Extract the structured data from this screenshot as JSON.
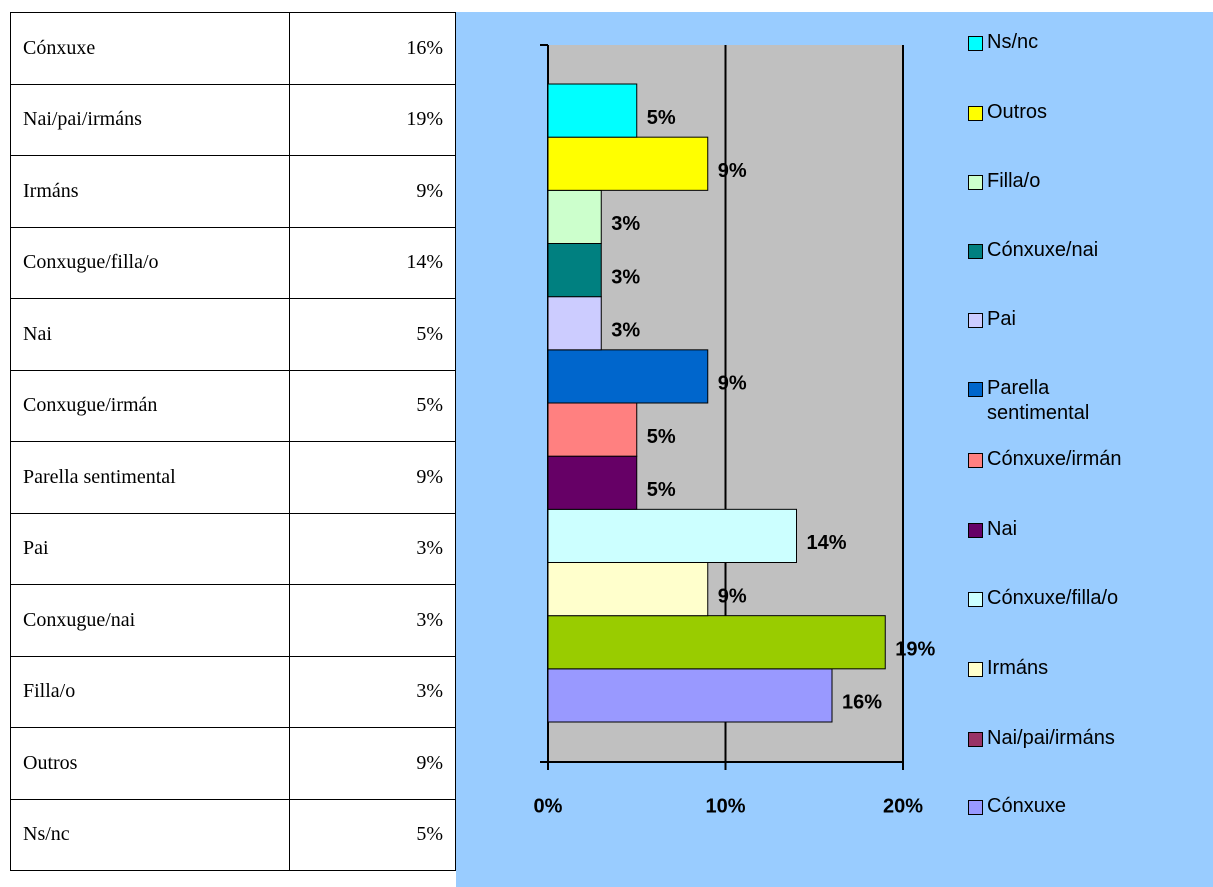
{
  "table": {
    "rows": [
      [
        "Cónxuxe",
        "16%"
      ],
      [
        "Nai/pai/irmáns",
        "19%"
      ],
      [
        "Irmáns",
        "9%"
      ],
      [
        "Conxugue/filla/o",
        "14%"
      ],
      [
        "Nai",
        "5%"
      ],
      [
        "Conxugue/irmán",
        "5%"
      ],
      [
        "Parella sentimental",
        "9%"
      ],
      [
        "Pai",
        "3%"
      ],
      [
        "Conxugue/nai",
        "3%"
      ],
      [
        "Filla/o",
        "3%"
      ],
      [
        "Outros",
        "9%"
      ],
      [
        "Ns/nc",
        "5%"
      ]
    ]
  },
  "chart_data": {
    "type": "barh",
    "categories": [
      "Cónxuxe",
      "Nai/pai/irmáns",
      "Irmáns",
      "Cónxuxe/filla/o",
      "Nai",
      "Cónxuxe/irmán",
      "Parella sentimental",
      "Pai",
      "Cónxuxe/nai",
      "Filla/o",
      "Outros",
      "Ns/nc"
    ],
    "values": [
      16,
      19,
      9,
      14,
      5,
      5,
      9,
      3,
      3,
      3,
      9,
      5
    ],
    "value_labels": [
      "16%",
      "19%",
      "9%",
      "14%",
      "5%",
      "5%",
      "9%",
      "3%",
      "3%",
      "3%",
      "9%",
      "5%"
    ],
    "colors": [
      "#9999ff",
      "#99cc00",
      "#ffffcc",
      "#ccffff",
      "#660066",
      "#ff8080",
      "#0066cc",
      "#ccccff",
      "#008080",
      "#ccffcc",
      "#ffff00",
      "#00ffff"
    ],
    "legend_colors": [
      "#9999ff",
      "#993366",
      "#ffffcc",
      "#ccffff",
      "#660066",
      "#ff8080",
      "#0066cc",
      "#ccccff",
      "#008080",
      "#ccffcc",
      "#ffff00",
      "#00ffff"
    ],
    "xlim": [
      0,
      20
    ],
    "xticks": [
      {
        "value": 0,
        "label": "0%"
      },
      {
        "value": 10,
        "label": "10%"
      },
      {
        "value": 20,
        "label": "20%"
      }
    ],
    "grid": true,
    "legend": "right"
  }
}
